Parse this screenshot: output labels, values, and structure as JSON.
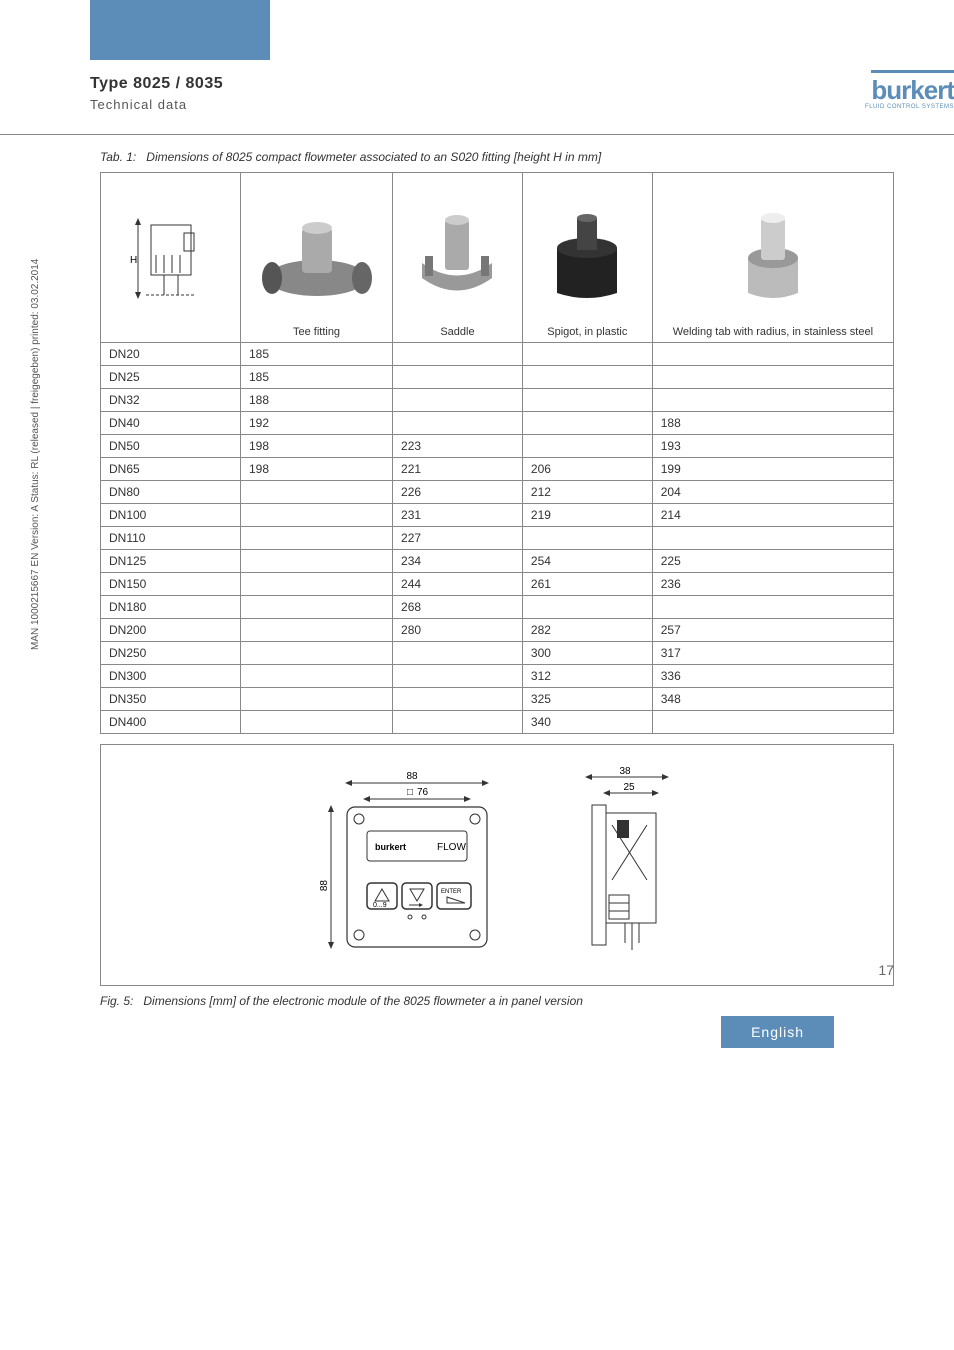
{
  "meta": {
    "sidebar": "MAN 1000215667 EN Version: A Status: RL (released | freigegeben) printed: 03.02.2014"
  },
  "header": {
    "type_title": "Type 8025 / 8035",
    "type_sub": "Technical data",
    "brand_main": "burkert",
    "brand_sub": "FLUID CONTROL SYSTEMS"
  },
  "table1": {
    "caption_label": "Tab. 1:",
    "caption_text": "Dimensions of 8025 compact flowmeter associated to an S020 fitting [height H in mm]",
    "columns": [
      {
        "label": "",
        "img_desc": "device-height-diagram"
      },
      {
        "label": "Tee fitting",
        "img_desc": "tee-fitting-photo"
      },
      {
        "label": "Saddle",
        "img_desc": "saddle-photo"
      },
      {
        "label": "Spigot, in plastic",
        "img_desc": "spigot-photo"
      },
      {
        "label": "Welding tab with radius, in stainless steel",
        "img_desc": "welding-tab-photo"
      }
    ],
    "rows": [
      {
        "dn": "DN20",
        "tee": "185",
        "saddle": "",
        "spigot": "",
        "weld": ""
      },
      {
        "dn": "DN25",
        "tee": "185",
        "saddle": "",
        "spigot": "",
        "weld": ""
      },
      {
        "dn": "DN32",
        "tee": "188",
        "saddle": "",
        "spigot": "",
        "weld": ""
      },
      {
        "dn": "DN40",
        "tee": "192",
        "saddle": "",
        "spigot": "",
        "weld": "188"
      },
      {
        "dn": "DN50",
        "tee": "198",
        "saddle": "223",
        "spigot": "",
        "weld": "193"
      },
      {
        "dn": "DN65",
        "tee": "198",
        "saddle": "221",
        "spigot": "206",
        "weld": "199"
      },
      {
        "dn": "DN80",
        "tee": "",
        "saddle": "226",
        "spigot": "212",
        "weld": "204"
      },
      {
        "dn": "DN100",
        "tee": "",
        "saddle": "231",
        "spigot": "219",
        "weld": "214"
      },
      {
        "dn": "DN110",
        "tee": "",
        "saddle": "227",
        "spigot": "",
        "weld": ""
      },
      {
        "dn": "DN125",
        "tee": "",
        "saddle": "234",
        "spigot": "254",
        "weld": "225"
      },
      {
        "dn": "DN150",
        "tee": "",
        "saddle": "244",
        "spigot": "261",
        "weld": "236"
      },
      {
        "dn": "DN180",
        "tee": "",
        "saddle": "268",
        "spigot": "",
        "weld": ""
      },
      {
        "dn": "DN200",
        "tee": "",
        "saddle": "280",
        "spigot": "282",
        "weld": "257"
      },
      {
        "dn": "DN250",
        "tee": "",
        "saddle": "",
        "spigot": "300",
        "weld": "317"
      },
      {
        "dn": "DN300",
        "tee": "",
        "saddle": "",
        "spigot": "312",
        "weld": "336"
      },
      {
        "dn": "DN350",
        "tee": "",
        "saddle": "",
        "spigot": "325",
        "weld": "348"
      },
      {
        "dn": "DN400",
        "tee": "",
        "saddle": "",
        "spigot": "340",
        "weld": ""
      }
    ]
  },
  "figure5": {
    "caption_label": "Fig. 5:",
    "caption_text": "Dimensions [mm] of the electronic module of the 8025 flowmeter a in panel version",
    "front": {
      "outer_w": "88",
      "panel_sq": "76",
      "outer_h": "88",
      "brand": "burkert",
      "flow_label": "FLOW",
      "enter_label": "ENTER"
    },
    "side": {
      "depth": "38",
      "front_depth": "25"
    }
  },
  "footer": {
    "page_num": "17",
    "language": "English"
  },
  "colors": {
    "accent": "#5b8db8",
    "border": "#888888",
    "text": "#333333"
  }
}
